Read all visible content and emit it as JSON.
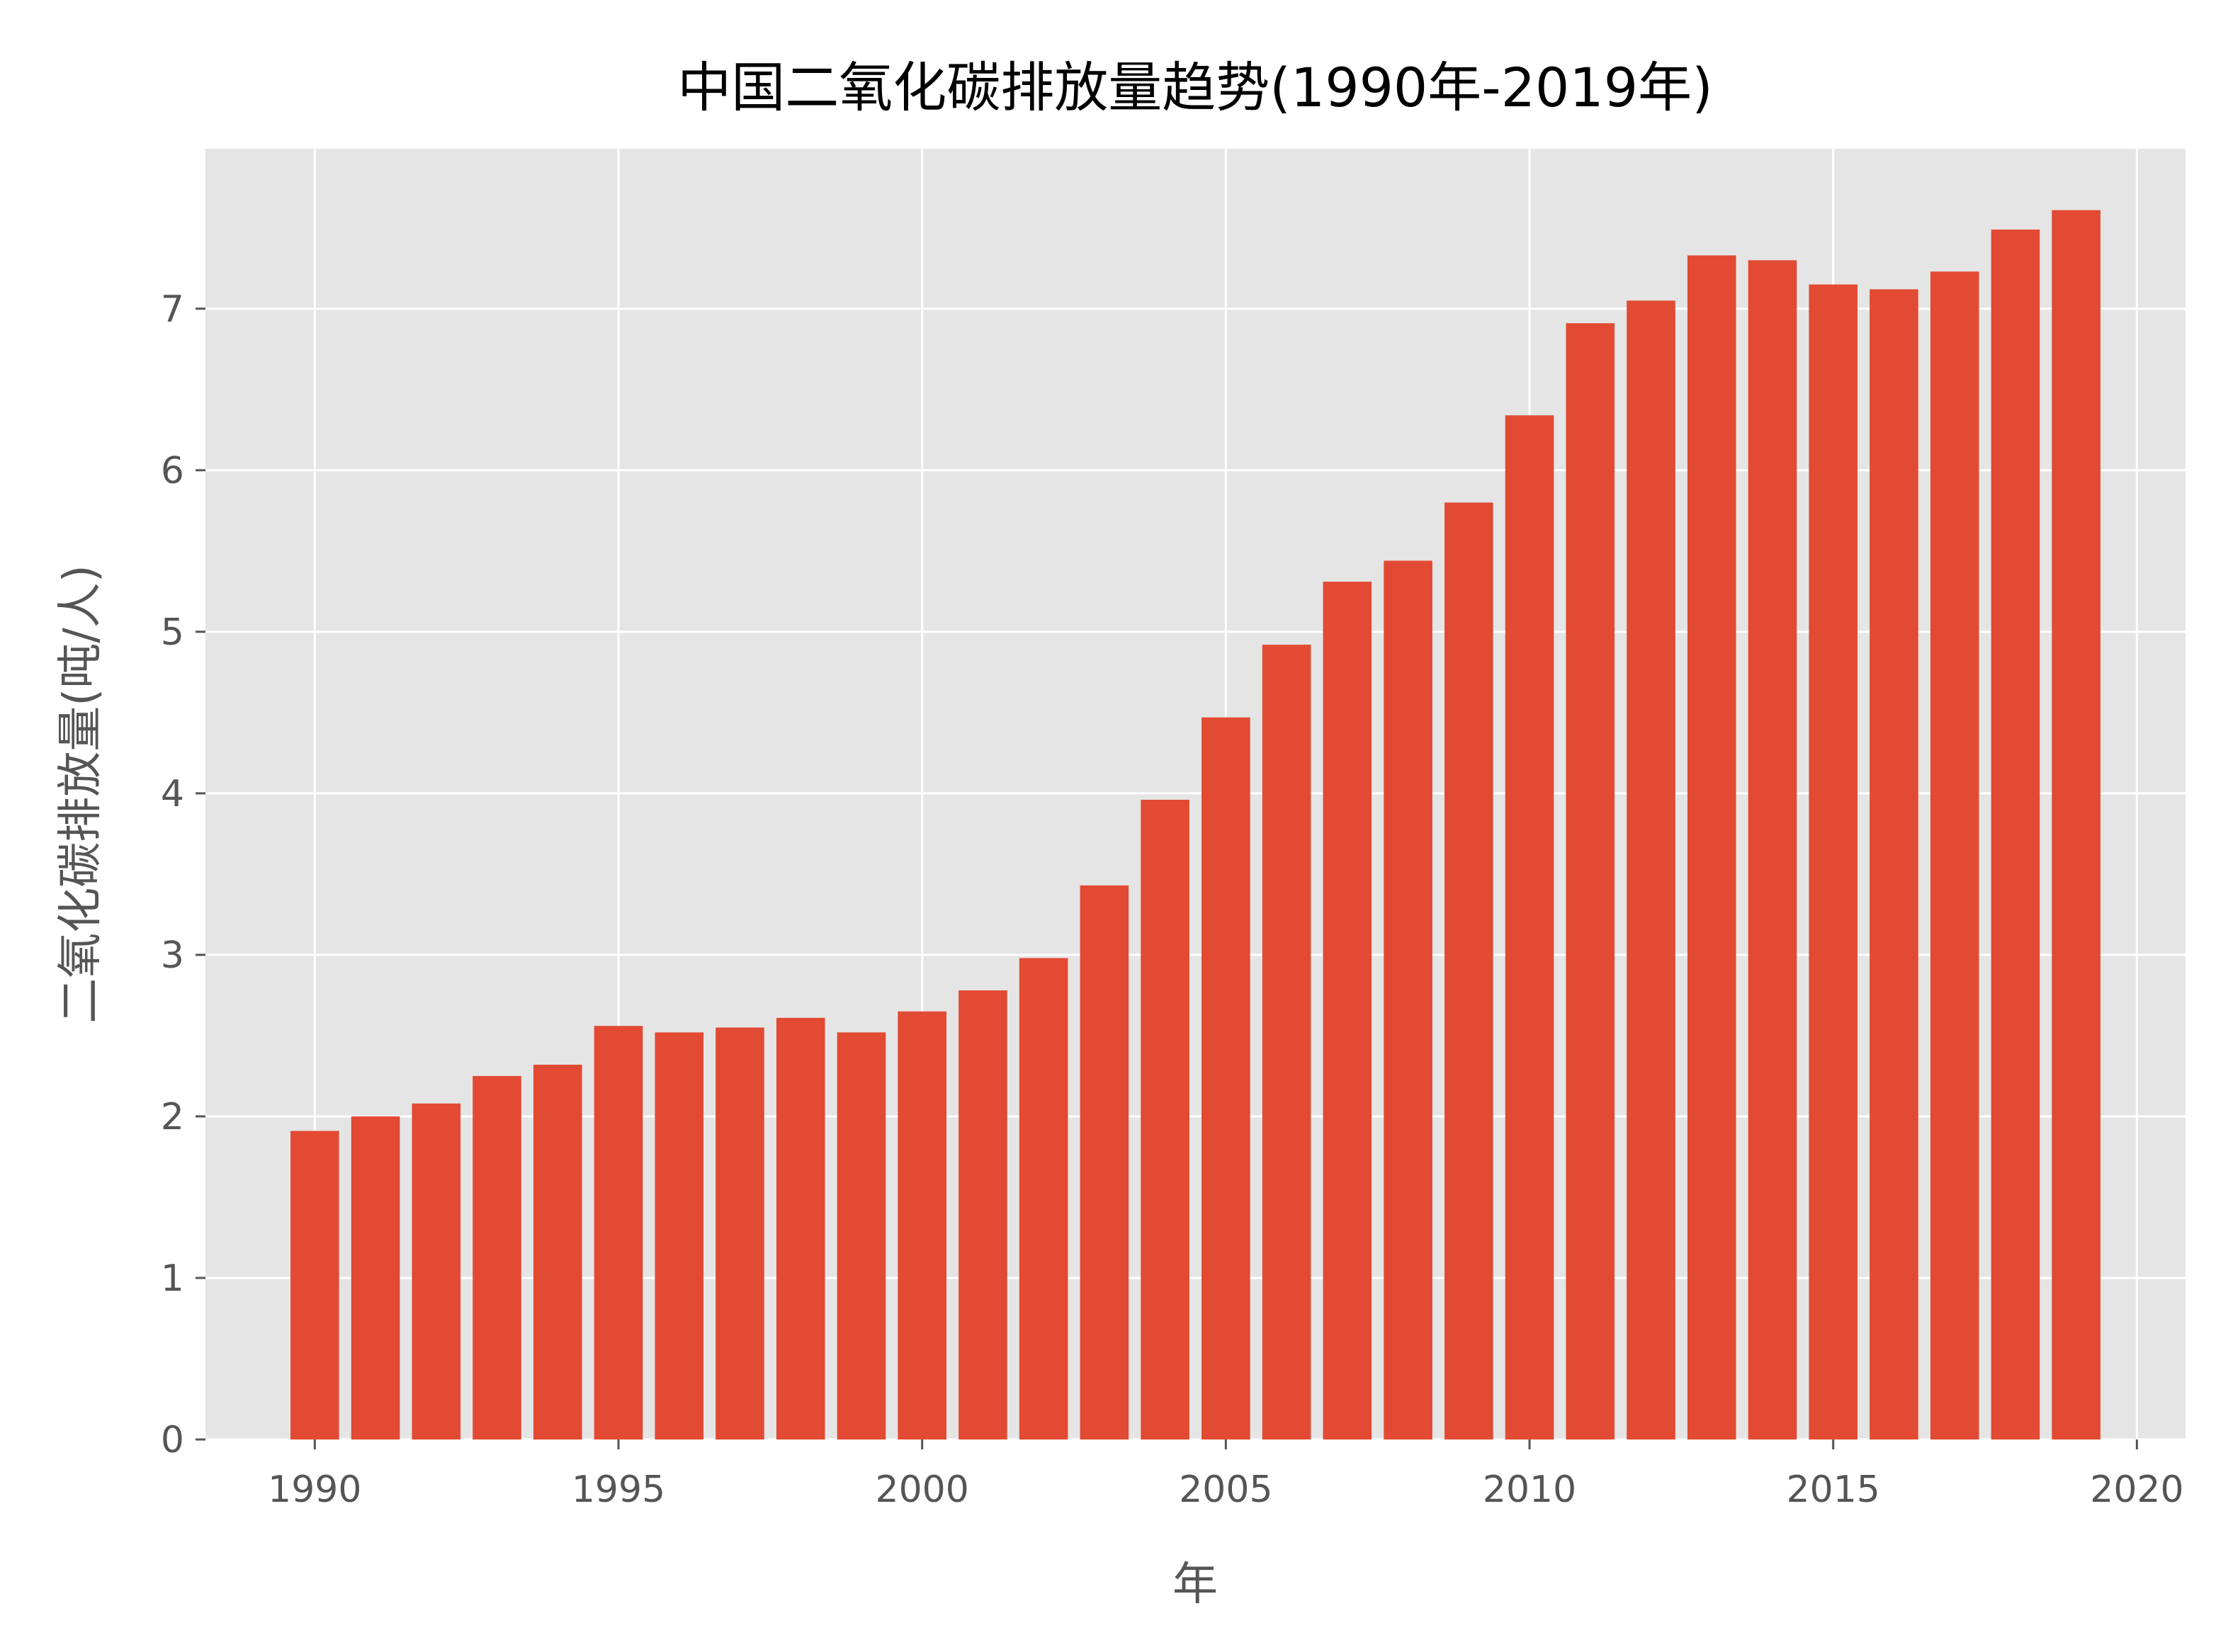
{
  "chart_data": {
    "type": "bar",
    "title": "中国二氧化碳排放量趋势(1990年-2019年)",
    "xlabel": "年",
    "ylabel": "二氧化碳排放量(吨/人)",
    "x": [
      1990,
      1991,
      1992,
      1993,
      1994,
      1995,
      1996,
      1997,
      1998,
      1999,
      2000,
      2001,
      2002,
      2003,
      2004,
      2005,
      2006,
      2007,
      2008,
      2009,
      2010,
      2011,
      2012,
      2013,
      2014,
      2015,
      2016,
      2017,
      2018,
      2019
    ],
    "values": [
      1.91,
      2.0,
      2.08,
      2.25,
      2.32,
      2.56,
      2.52,
      2.55,
      2.61,
      2.52,
      2.65,
      2.78,
      2.98,
      3.43,
      3.96,
      4.47,
      4.92,
      5.31,
      5.44,
      5.8,
      6.34,
      6.91,
      7.05,
      7.33,
      7.3,
      7.15,
      7.12,
      7.23,
      7.49,
      7.61
    ],
    "xlim": [
      1988.2,
      2020.8
    ],
    "ylim": [
      0,
      7.99
    ],
    "xticks": [
      1990,
      1995,
      2000,
      2005,
      2010,
      2015,
      2020
    ],
    "yticks": [
      0,
      1,
      2,
      3,
      4,
      5,
      6,
      7
    ],
    "grid": true,
    "colors": {
      "bar": "#E24A33",
      "plot_background": "#E5E5E5",
      "grid": "#FFFFFF",
      "tick_text": "#555555",
      "title_text": "#000000"
    }
  }
}
